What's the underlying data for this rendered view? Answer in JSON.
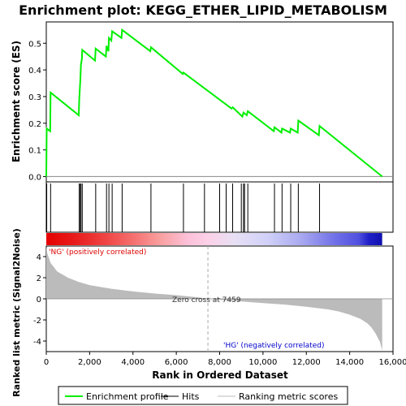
{
  "chart_data": {
    "type": "line",
    "title": "Enrichment plot: KEGG_ETHER_LIPID_METABOLISM",
    "es_panel": {
      "ylabel": "Enrichment score (ES)",
      "ylim": [
        -0.02,
        0.58
      ],
      "yticks": [
        "0.0",
        "0.1",
        "0.2",
        "0.3",
        "0.4",
        "0.5"
      ],
      "ytick_values": [
        0.0,
        0.1,
        0.2,
        0.3,
        0.4,
        0.5
      ],
      "series": [
        {
          "name": "Enrichment profile",
          "color": "#00ee00",
          "x": [
            0,
            20,
            180,
            200,
            1500,
            1520,
            1570,
            1600,
            1640,
            1660,
            2250,
            2280,
            2750,
            2780,
            2870,
            2890,
            3000,
            3040,
            3470,
            3500,
            4800,
            4830,
            6300,
            6330,
            8550,
            8600,
            9050,
            9100,
            9250,
            9300,
            10500,
            10530,
            10850,
            10880,
            11250,
            11280,
            11600,
            11630,
            12580,
            12610,
            15500
          ],
          "y": [
            0.0,
            0.18,
            0.17,
            0.315,
            0.23,
            0.29,
            0.36,
            0.42,
            0.44,
            0.475,
            0.435,
            0.48,
            0.45,
            0.49,
            0.47,
            0.52,
            0.51,
            0.545,
            0.52,
            0.55,
            0.47,
            0.485,
            0.385,
            0.39,
            0.255,
            0.26,
            0.225,
            0.24,
            0.23,
            0.245,
            0.17,
            0.185,
            0.165,
            0.18,
            0.165,
            0.18,
            0.165,
            0.21,
            0.155,
            0.19,
            0.0
          ]
        }
      ]
    },
    "hits": {
      "name": "Hits",
      "x": [
        20,
        200,
        1520,
        1570,
        1600,
        1660,
        2280,
        2780,
        2890,
        3040,
        3500,
        4830,
        6330,
        7300,
        8000,
        8300,
        8600,
        9000,
        9100,
        9150,
        9300,
        10530,
        10880,
        11280,
        11630,
        12610
      ]
    },
    "ranking_panel": {
      "ylabel": "Ranked list metric (Signal2Noise)",
      "ylim": [
        -5,
        5
      ],
      "yticks": [
        "-4",
        "-2",
        "0",
        "2",
        "4"
      ],
      "ytick_values": [
        -4,
        -2,
        0,
        2,
        4
      ],
      "zero_cross_label": "Zero cross at 7459",
      "zero_cross_x": 7459,
      "pos_label": "'NG' (positively correlated)",
      "neg_label": "'HG' (negatively correlated)",
      "metric_curve": {
        "x": [
          0,
          50,
          200,
          500,
          1000,
          1500,
          2000,
          3000,
          4000,
          5000,
          6000,
          7000,
          7459,
          8000,
          9000,
          10000,
          11000,
          12000,
          13000,
          13500,
          14000,
          14500,
          14800,
          15000,
          15200,
          15400,
          15500
        ],
        "y": [
          4.9,
          4.3,
          3.4,
          2.6,
          2.0,
          1.6,
          1.3,
          0.95,
          0.7,
          0.5,
          0.35,
          0.15,
          0.0,
          -0.1,
          -0.25,
          -0.4,
          -0.55,
          -0.75,
          -1.0,
          -1.2,
          -1.5,
          -1.9,
          -2.3,
          -2.7,
          -3.3,
          -4.1,
          -4.9
        ]
      }
    },
    "xaxis": {
      "xlabel": "Rank in Ordered Dataset",
      "xlim": [
        0,
        16000
      ],
      "xticks": [
        "0",
        "2,000",
        "4,000",
        "6,000",
        "8,000",
        "10,000",
        "12,000",
        "14,000",
        "16,000"
      ],
      "xtick_values": [
        0,
        2000,
        4000,
        6000,
        8000,
        10000,
        12000,
        14000,
        16000
      ],
      "n_genes": 15500
    },
    "legend": {
      "placement": "bottom",
      "items": [
        {
          "label": "Enrichment profile",
          "color": "#00ee00"
        },
        {
          "label": "Hits",
          "color": "#000000"
        },
        {
          "label": "Ranking metric scores",
          "color": "#bbbbbb"
        }
      ]
    },
    "colors": {
      "pos_label": "#dd0000",
      "neg_label": "#0000cc",
      "zero_cross": "#444444",
      "metric_fill": "#bbbbbb"
    }
  }
}
